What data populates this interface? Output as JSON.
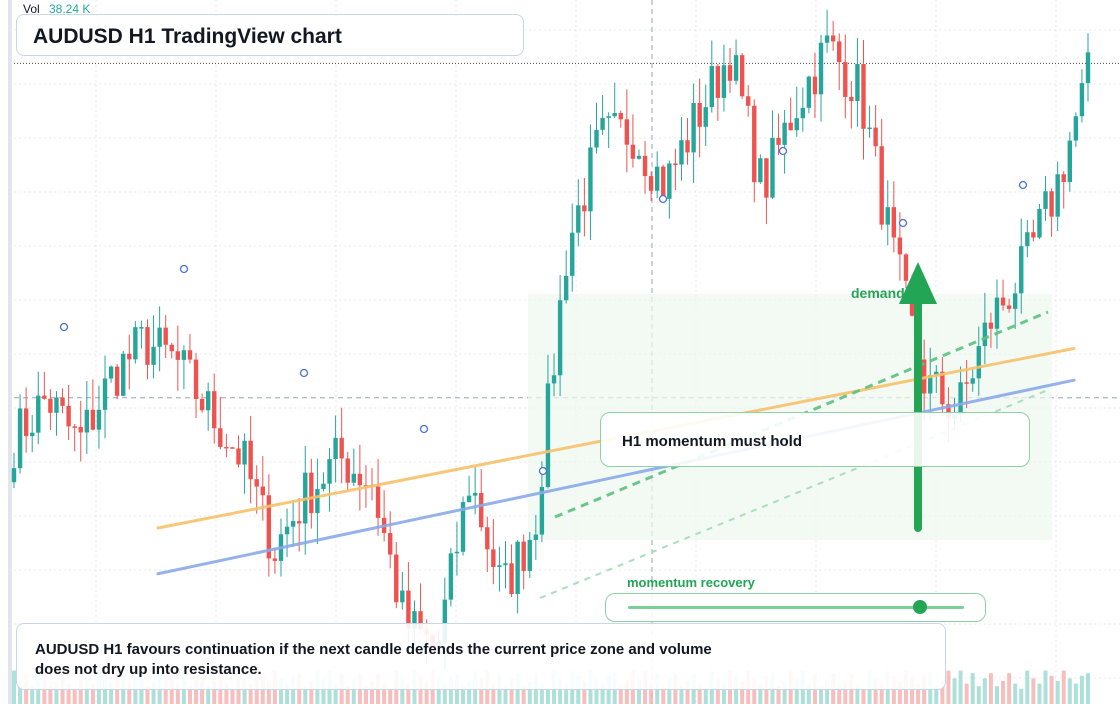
{
  "chart_data": {
    "type": "candlestick",
    "title": "AUDUSD H1 TradingView chart",
    "symbol": "AUDUSD",
    "timeframe": "H1",
    "volume_label": "Vol",
    "volume_value": "38.24 K",
    "ylim": [
      0.654,
      0.674
    ],
    "colors": {
      "up": "#26a69a",
      "down": "#ef5350",
      "orange_line": "#f7c26b",
      "blue_line": "#8aaae8",
      "accent": "#22a554"
    },
    "key": [
      0.6615,
      0.6627,
      0.6614,
      0.6633,
      0.6643,
      0.6637,
      0.6623,
      0.661,
      0.6584,
      0.66,
      0.661,
      0.6603,
      0.6563,
      0.6555,
      0.6604,
      0.6572,
      0.6591,
      0.667,
      0.67,
      0.6703,
      0.6687,
      0.6707,
      0.6725,
      0.6686,
      0.671,
      0.6727,
      0.6714,
      0.6668,
      0.6631,
      0.6623,
      0.6649,
      0.6663,
      0.6686,
      0.6718
    ],
    "volumes": [
      0.9,
      0.4,
      0.8,
      0.3,
      0.6,
      0.8,
      0.3,
      0.5,
      0.8,
      0.4,
      0.2,
      0.9,
      0.6,
      0.4,
      0.9,
      0.7,
      0.5,
      0.9,
      0.6,
      0.4,
      0.7,
      0.8,
      0.3,
      0.5,
      0.9,
      0.6
    ],
    "annotations": {
      "zone_label": "demand",
      "momentum_label": "H1 momentum must hold",
      "meter_label": "momentum recovery",
      "meter_level": 0.87,
      "summary": "AUDUSD H1 favours continuation if the next candle defends the current price zone and volume does not dry up into resistance."
    },
    "crosshair_price": 0.6627,
    "levels": {
      "top_dotted": 0.6722,
      "orange_line": [
        [
          0.659,
          0.6641
        ],
        0.6601
      ],
      "blue_line": [
        [
          0.6577,
          0.6632
        ],
        0.6587
      ]
    }
  }
}
